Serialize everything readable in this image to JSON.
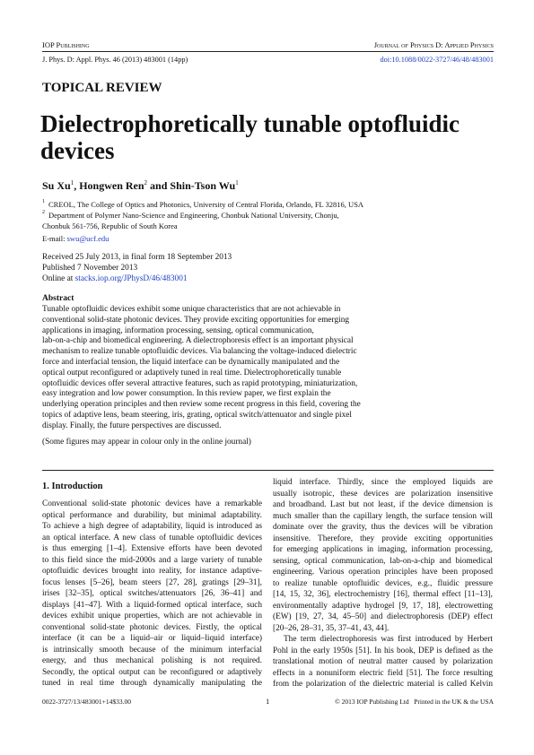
{
  "header": {
    "publisher": "IOP Publishing",
    "journal": "Journal of Physics D: Applied Physics",
    "citation": "J. Phys. D: Appl. Phys. 46 (2013) 483001 (14pp)",
    "doi": "doi:10.1088/0022-3727/46/48/483001"
  },
  "section_label": "TOPICAL REVIEW",
  "title_lines": [
    "Dielectrophoretically tunable optofluidic",
    "devices"
  ],
  "authors": [
    {
      "name": "Su Xu",
      "affil": "1"
    },
    {
      "name": "Hongwen Ren",
      "affil": "2"
    },
    {
      "name": "Shin-Tson Wu",
      "affil": "1"
    }
  ],
  "author_separators": [
    ", ",
    " and "
  ],
  "affiliations": [
    {
      "mark": "1",
      "lines": [
        "CREOL, The College of Optics and Photonics, University of Central Florida, Orlando, FL 32816, USA"
      ]
    },
    {
      "mark": "2",
      "lines": [
        "Department of Polymer Nano-Science and Engineering, Chonbuk National University, Chonju,",
        "Chonbuk 561-756, Republic of South Korea"
      ]
    }
  ],
  "email": {
    "label": "E-mail:",
    "address": "swu@ucf.edu"
  },
  "history": {
    "received": "Received 25 July 2013, in final form 18 September 2013",
    "published": "Published 7 November 2013",
    "online_label": "Online at",
    "online_link": "stacks.iop.org/JPhysD/46/483001"
  },
  "abstract": {
    "heading": "Abstract",
    "lines": [
      "Tunable optofluidic devices exhibit some unique characteristics that are not achievable in",
      "conventional solid-state photonic devices. They provide exciting opportunities for emerging",
      "applications in imaging, information processing, sensing, optical communication,",
      "lab-on-a-chip and biomedical engineering. A dielectrophoresis effect is an important physical",
      "mechanism to realize tunable optofluidic devices. Via balancing the voltage-induced dielectric",
      "force and interfacial tension, the liquid interface can be dynamically manipulated and the",
      "optical output reconfigured or adaptively tuned in real time. Dielectrophoretically tunable",
      "optofluidic devices offer several attractive features, such as rapid prototyping, miniaturization,",
      "easy integration and low power consumption. In this review paper, we first explain the",
      "underlying operation principles and then review some recent progress in this field, covering the",
      "topics of adaptive lens, beam steering, iris, grating, optical switch/attenuator and single pixel",
      "display. Finally, the future perspectives are discussed."
    ],
    "note": "(Some figures may appear in colour only in the online journal)"
  },
  "section_heading": "1. Introduction",
  "columns": [
    [
      {
        "lines": [
          "Conventional solid-state photonic devices have a remarkable",
          "optical performance and durability, but minimal adaptability.",
          "To achieve a high degree of adaptability, liquid is introduced as",
          "an optical interface. A new class of tunable optofluidic devices",
          "is thus emerging [1–4]. Extensive efforts have been devoted",
          "to this field since the mid-2000s and a large variety of tunable",
          "optofluidic devices brought into reality, for instance adaptive-",
          "focus lenses [5–26], beam steers [27, 28], gratings [29–31],",
          "irises [32–35], optical switches/attenuators [26, 36–41] and",
          "displays [41–47]. With a liquid-formed optical interface, such",
          "devices exhibit unique properties, which are not achievable in",
          "conventional solid-state photonic devices. Firstly, the optical",
          "interface (it can be a liquid–air or liquid–liquid interface)",
          "is intrinsically smooth because of the minimum interfacial",
          "energy, and thus mechanical polishing is not required.",
          "Secondly, the optical output can be reconfigured or adaptively",
          "tuned in real time through dynamically manipulating the"
        ]
      }
    ],
    [
      {
        "lines": [
          "liquid interface. Thirdly, since the employed liquids are",
          "usually isotropic, these devices are polarization insensitive",
          "and broadband. Last but not least, if the device dimension is",
          "much smaller than the capillary length, the surface tension will",
          "dominate over the gravity, thus the devices will be vibration",
          "insensitive. Therefore, they provide exciting opportunities",
          "for emerging applications in imaging, information processing,",
          "sensing, optical communication, lab-on-a-chip and biomedical",
          "engineering. Various operation principles have been proposed",
          "to realize tunable optofluidic devices, e.g., fluidic pressure",
          "[14, 15, 32, 36], electrochemistry [16], thermal effect [11–13],",
          "environmentally adaptive hydrogel [9, 17, 18], electrowetting",
          "(EW) [19, 27, 34, 45–50] and dielectrophoresis (DEP) effect",
          "[20–26, 28–31, 35, 37–41, 43, 44]."
        ]
      },
      {
        "lines": [
          "The term dielectrophoresis was first introduced by Herbert",
          "Pohl in the early 1950s [51]. In his book, DEP is defined as the",
          "translational motion of neutral matter caused by polarization",
          "effects in a nonuniform electric field [51]. The force resulting",
          "from the polarization of the dielectric material is called Kelvin"
        ]
      }
    ]
  ],
  "footer": {
    "code": "0022-3727/13/483001+14$33.00",
    "page": "1",
    "copyright": "© 2013 IOP Publishing Ltd   Printed in the UK & the USA"
  }
}
